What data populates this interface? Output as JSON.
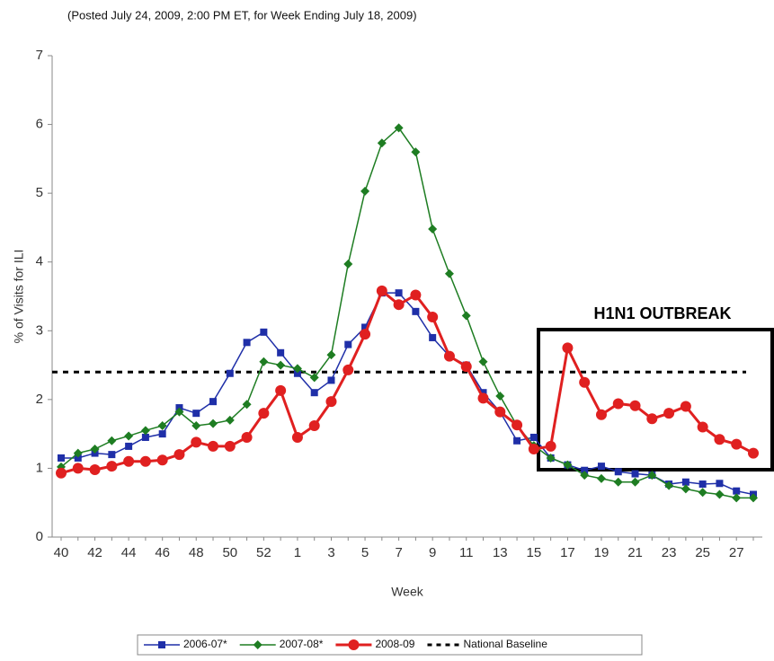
{
  "chart_data": {
    "type": "line",
    "subtitle": "(Posted July 24, 2009, 2:00 PM ET, for Week Ending July 18, 2009)",
    "y_label": "% of Visits for ILI",
    "x_label": "Week",
    "annotation": "H1N1 OUTBREAK",
    "categories": [
      "40",
      null,
      "42",
      null,
      "44",
      null,
      "46",
      null,
      "48",
      null,
      "50",
      null,
      "52",
      null,
      "1",
      null,
      "3",
      null,
      "5",
      null,
      "7",
      null,
      "9",
      null,
      "11",
      null,
      "13",
      null,
      "15",
      null,
      "17",
      null,
      "19",
      null,
      "21",
      null,
      "23",
      null,
      "25",
      null,
      "27",
      null
    ],
    "ylim": [
      0,
      7
    ],
    "yticks": [
      0,
      1,
      2,
      3,
      4,
      5,
      6,
      7
    ],
    "series": [
      {
        "name": "2006-07*",
        "color": "#1f2fa8",
        "marker": "square",
        "values": [
          1.15,
          1.15,
          1.22,
          1.2,
          1.32,
          1.45,
          1.5,
          1.88,
          1.8,
          1.97,
          2.38,
          2.83,
          2.98,
          2.68,
          2.38,
          2.1,
          2.28,
          2.8,
          3.05,
          3.55,
          3.55,
          3.28,
          2.9,
          2.63,
          2.5,
          2.1,
          1.82,
          1.4,
          1.45,
          1.15,
          1.05,
          0.97,
          1.03,
          0.95,
          0.92,
          0.9,
          0.77,
          0.8,
          0.77,
          0.78,
          0.67,
          0.62
        ]
      },
      {
        "name": "2007-08*",
        "color": "#1e7d22",
        "marker": "diamond",
        "values": [
          1.02,
          1.22,
          1.28,
          1.4,
          1.47,
          1.55,
          1.62,
          1.82,
          1.62,
          1.65,
          1.7,
          1.93,
          2.55,
          2.5,
          2.45,
          2.32,
          2.65,
          3.97,
          5.03,
          5.73,
          5.95,
          5.6,
          4.48,
          3.83,
          3.22,
          2.55,
          2.05,
          1.62,
          1.33,
          1.15,
          1.05,
          0.9,
          0.85,
          0.8,
          0.8,
          0.9,
          0.75,
          0.7,
          0.65,
          0.62,
          0.57,
          0.57
        ]
      },
      {
        "name": "2008-09",
        "color": "#e02020",
        "marker": "circle",
        "values": [
          0.93,
          1.0,
          0.98,
          1.03,
          1.1,
          1.1,
          1.12,
          1.2,
          1.38,
          1.32,
          1.32,
          1.45,
          1.8,
          2.13,
          1.45,
          1.62,
          1.97,
          2.43,
          2.95,
          3.58,
          3.38,
          3.52,
          3.2,
          2.63,
          2.48,
          2.02,
          1.82,
          1.63,
          1.28,
          1.32,
          2.75,
          2.25,
          1.78,
          1.94,
          1.91,
          1.72,
          1.8,
          1.9,
          1.6,
          1.42,
          1.35,
          1.22
        ]
      }
    ],
    "baseline": {
      "name": "National Baseline",
      "value": 2.4,
      "color": "#000"
    }
  }
}
